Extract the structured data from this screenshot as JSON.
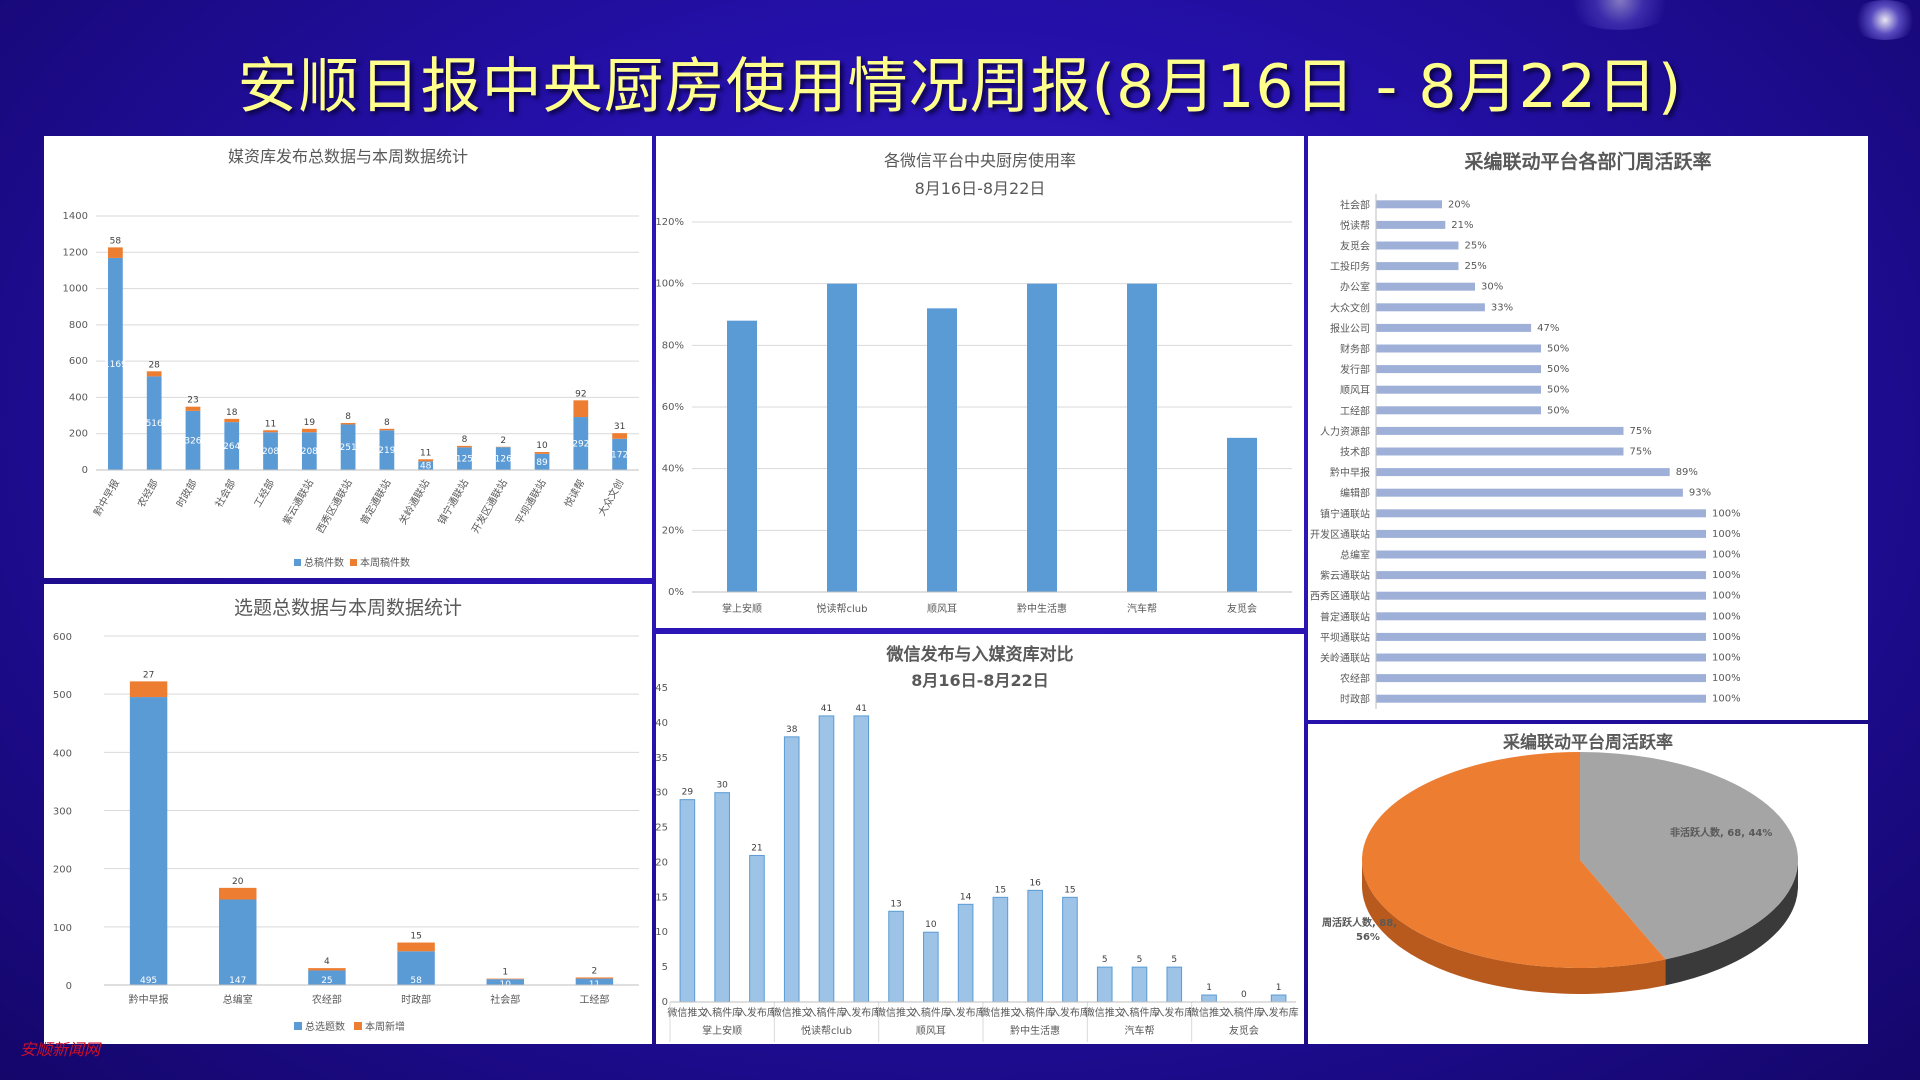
{
  "page_title": "安顺日报中央厨房使用情况周报(8月16日 - 8月22日)",
  "watermark": "安顺新闻网",
  "colors": {
    "blue": "#5b9bd5",
    "orange": "#ed7d31",
    "gray": "#a5a5a5",
    "lavender": "#9fb0d8",
    "title": "#ffff8c"
  },
  "chart_data": [
    {
      "id": "media-library",
      "type": "bar",
      "stacked": true,
      "title": "媒资库发布总数据与本周数据统计",
      "categories": [
        "黔中早报",
        "农经部",
        "时政部",
        "社会部",
        "工经部",
        "紫云通联站",
        "西秀区通联站",
        "普定通联站",
        "关岭通联站",
        "镇宁通联站",
        "开发区通联站",
        "平坝通联站",
        "悦读帮",
        "大众文创"
      ],
      "series": [
        {
          "name": "总稿件数",
          "values": [
            1169,
            516,
            326,
            264,
            208,
            208,
            251,
            219,
            48,
            125,
            126,
            89,
            292,
            172
          ]
        },
        {
          "name": "本周稿件数",
          "values": [
            58,
            28,
            23,
            18,
            11,
            19,
            8,
            8,
            11,
            8,
            2,
            10,
            92,
            31
          ]
        }
      ],
      "ylim": [
        0,
        1400
      ],
      "yticks": [
        0,
        200,
        400,
        600,
        800,
        1000,
        1200,
        1400
      ],
      "legend": "bottom"
    },
    {
      "id": "wechat-usage",
      "type": "bar",
      "title": "各微信平台中央厨房使用率",
      "subtitle": "8月16日-8月22日",
      "categories": [
        "掌上安顺",
        "悦读帮club",
        "顺风耳",
        "黔中生活惠",
        "汽车帮",
        "友觅会"
      ],
      "values": [
        88,
        100,
        92,
        100,
        100,
        50
      ],
      "ylim": [
        0,
        120
      ],
      "yticks": [
        "0%",
        "20%",
        "40%",
        "60%",
        "80%",
        "100%",
        "120%"
      ]
    },
    {
      "id": "dept-activity",
      "type": "bar",
      "orientation": "horizontal",
      "title": "采编联动平台各部门周活跃率",
      "categories": [
        "社会部",
        "悦读帮",
        "友觅会",
        "工投印务",
        "办公室",
        "大众文创",
        "报业公司",
        "财务部",
        "发行部",
        "顺风耳",
        "工经部",
        "人力资源部",
        "技术部",
        "黔中早报",
        "编辑部",
        "镇宁通联站",
        "开发区通联站",
        "总编室",
        "紫云通联站",
        "西秀区通联站",
        "普定通联站",
        "平坝通联站",
        "关岭通联站",
        "农经部",
        "时政部"
      ],
      "values": [
        20,
        21,
        25,
        25,
        30,
        33,
        47,
        50,
        50,
        50,
        50,
        75,
        75,
        89,
        93,
        100,
        100,
        100,
        100,
        100,
        100,
        100,
        100,
        100,
        100
      ],
      "value_labels": [
        "20%",
        "21%",
        "25%",
        "25%",
        "30%",
        "33%",
        "47%",
        "50%",
        "50%",
        "50%",
        "50%",
        "75%",
        "75%",
        "89%",
        "93%",
        "100%",
        "100%",
        "100%",
        "100%",
        "100%",
        "100%",
        "100%",
        "100%",
        "100%",
        "100%"
      ]
    },
    {
      "id": "topics",
      "type": "bar",
      "stacked": true,
      "title": "选题总数据与本周数据统计",
      "categories": [
        "黔中早报",
        "总编室",
        "农经部",
        "时政部",
        "社会部",
        "工经部"
      ],
      "series": [
        {
          "name": "总选题数",
          "values": [
            495,
            147,
            25,
            58,
            10,
            11
          ]
        },
        {
          "name": "本周新增",
          "values": [
            27,
            20,
            4,
            15,
            1,
            2
          ]
        }
      ],
      "ylim": [
        0,
        600
      ],
      "yticks": [
        0,
        100,
        200,
        300,
        400,
        500,
        600
      ],
      "legend": "bottom"
    },
    {
      "id": "wechat-vs-library",
      "type": "bar",
      "title": "微信发布与入媒资库对比",
      "subtitle": "8月16日-8月22日",
      "groups": [
        "掌上安顺",
        "悦读帮club",
        "顺风耳",
        "黔中生活惠",
        "汽车帮",
        "友觅会"
      ],
      "subcategories": [
        "微信推文",
        "入稿件库",
        "入发布库"
      ],
      "values": [
        [
          29,
          30,
          21
        ],
        [
          38,
          41,
          41
        ],
        [
          13,
          10,
          14
        ],
        [
          15,
          16,
          15
        ],
        [
          5,
          5,
          5
        ],
        [
          1,
          0,
          1
        ]
      ],
      "ylim": [
        0,
        45
      ],
      "yticks": [
        0,
        5,
        10,
        15,
        20,
        25,
        30,
        35,
        40,
        45
      ]
    },
    {
      "id": "platform-activity",
      "type": "pie",
      "title": "采编联动平台周活跃率",
      "slices": [
        {
          "label": "非活跃人数",
          "text": "非活跃人数, 68, 44%",
          "value": 68,
          "percent": 44,
          "color": "#a5a5a5"
        },
        {
          "label": "周活跃人数",
          "text": "周活跃人数, 88,",
          "percent_text": "56%",
          "value": 88,
          "percent": 56,
          "color": "#ed7d31"
        }
      ]
    }
  ]
}
